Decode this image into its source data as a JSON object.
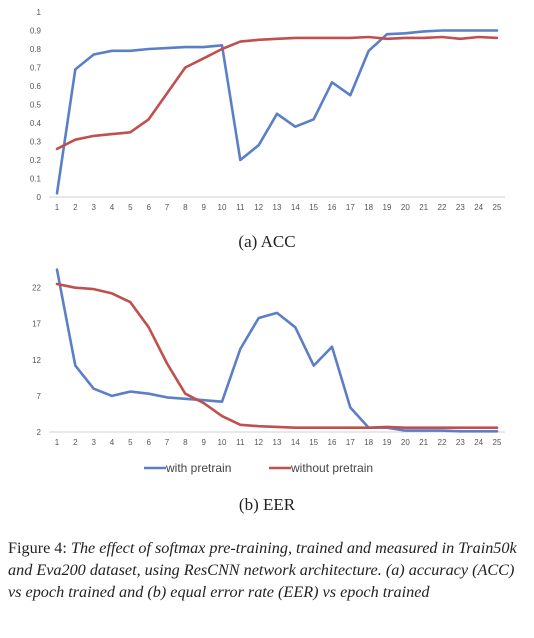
{
  "chart_data": [
    {
      "type": "line",
      "x": [
        "1",
        "2",
        "3",
        "4",
        "5",
        "6",
        "7",
        "8",
        "9",
        "10",
        "11",
        "12",
        "13",
        "14",
        "15",
        "16",
        "17",
        "18",
        "19",
        "20",
        "21",
        "22",
        "23",
        "24",
        "25"
      ],
      "yticks": [
        "0",
        "0.1",
        "0.2",
        "0.3",
        "0.4",
        "0.5",
        "0.6",
        "0.7",
        "0.8",
        "0.9",
        "1"
      ],
      "ylim": [
        0,
        1
      ],
      "grid": false,
      "series": [
        {
          "name": "with pretrain",
          "color": "#5b7fc7",
          "values": [
            0.02,
            0.69,
            0.77,
            0.79,
            0.79,
            0.8,
            0.805,
            0.81,
            0.81,
            0.82,
            0.2,
            0.28,
            0.45,
            0.38,
            0.42,
            0.62,
            0.55,
            0.79,
            0.88,
            0.885,
            0.895,
            0.9,
            0.9,
            0.9,
            0.9
          ]
        },
        {
          "name": "without pretrain",
          "color": "#c0504d",
          "values": [
            0.26,
            0.31,
            0.33,
            0.34,
            0.35,
            0.42,
            0.56,
            0.7,
            0.75,
            0.8,
            0.84,
            0.85,
            0.855,
            0.86,
            0.86,
            0.86,
            0.86,
            0.865,
            0.855,
            0.86,
            0.86,
            0.865,
            0.855,
            0.865,
            0.86
          ]
        }
      ],
      "label": "(a) ACC"
    },
    {
      "type": "line",
      "x": [
        "1",
        "2",
        "3",
        "4",
        "5",
        "6",
        "7",
        "8",
        "9",
        "10",
        "11",
        "12",
        "13",
        "14",
        "15",
        "16",
        "17",
        "18",
        "19",
        "20",
        "21",
        "22",
        "23",
        "24",
        "25"
      ],
      "yticks": [
        "2",
        "7",
        "12",
        "17",
        "22"
      ],
      "ylim": [
        2,
        25
      ],
      "grid": false,
      "legend": "bottom",
      "series": [
        {
          "name": "with pretrain",
          "color": "#5b7fc7",
          "values": [
            24.5,
            11.2,
            8.0,
            7.0,
            7.6,
            7.3,
            6.8,
            6.6,
            6.4,
            6.2,
            13.5,
            17.8,
            18.5,
            16.5,
            11.2,
            13.8,
            5.4,
            2.6,
            2.6,
            2.2,
            2.2,
            2.2,
            2.1,
            2.1,
            2.1
          ]
        },
        {
          "name": "without pretrain",
          "color": "#c0504d",
          "values": [
            22.5,
            22.0,
            21.8,
            21.2,
            20.0,
            16.5,
            11.5,
            7.3,
            6.0,
            4.2,
            3.0,
            2.8,
            2.7,
            2.6,
            2.6,
            2.6,
            2.6,
            2.6,
            2.7,
            2.6,
            2.6,
            2.6,
            2.6,
            2.6,
            2.6
          ]
        }
      ],
      "label": "(b) EER"
    }
  ],
  "caption": {
    "prefix": "Figure 4:",
    "text": "The effect of softmax pre-training, trained and measured in Train50k and Eva200 dataset, using ResCNN network architecture. (a) accuracy (ACC) vs epoch trained and (b) equal error rate (EER) vs epoch trained"
  }
}
